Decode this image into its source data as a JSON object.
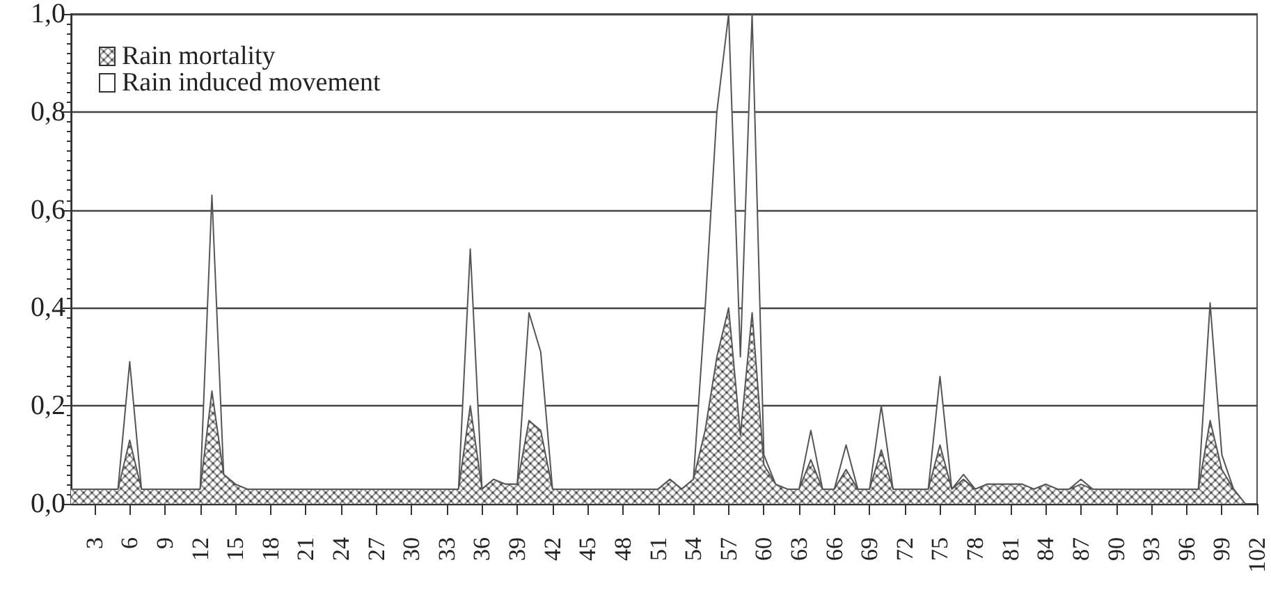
{
  "chart_data": {
    "type": "area",
    "categories": [
      null,
      null,
      "3",
      null,
      null,
      "6",
      null,
      null,
      "9",
      null,
      null,
      "12",
      null,
      null,
      "15",
      null,
      null,
      "18",
      null,
      null,
      "21",
      null,
      null,
      "24",
      null,
      null,
      "27",
      null,
      null,
      "30",
      null,
      null,
      "33",
      null,
      null,
      "36",
      null,
      null,
      "39",
      null,
      null,
      "42",
      null,
      null,
      "45",
      null,
      null,
      "48",
      null,
      null,
      "51",
      null,
      null,
      "54",
      null,
      null,
      "57",
      null,
      null,
      "60",
      null,
      null,
      "63",
      null,
      null,
      "66",
      null,
      null,
      "69",
      null,
      null,
      "72",
      null,
      null,
      "75",
      null,
      null,
      "78",
      null,
      null,
      "81",
      null,
      null,
      "84",
      null,
      null,
      "87",
      null,
      null,
      "90",
      null,
      null,
      "93",
      null,
      null,
      "96",
      null,
      null,
      "99",
      null,
      null,
      "102"
    ],
    "series": [
      {
        "name": "Rain mortality",
        "color": "#333333",
        "values": [
          0.03,
          0.03,
          0.03,
          0.03,
          0.03,
          0.13,
          0.03,
          0.03,
          0.03,
          0.03,
          0.03,
          0.03,
          0.23,
          0.06,
          0.04,
          0.03,
          0.03,
          0.03,
          0.03,
          0.03,
          0.03,
          0.03,
          0.03,
          0.03,
          0.03,
          0.03,
          0.03,
          0.03,
          0.03,
          0.03,
          0.03,
          0.03,
          0.03,
          0.03,
          0.2,
          0.03,
          0.05,
          0.04,
          0.04,
          0.17,
          0.15,
          0.03,
          0.03,
          0.03,
          0.03,
          0.03,
          0.03,
          0.03,
          0.03,
          0.03,
          0.03,
          0.05,
          0.03,
          0.05,
          0.15,
          0.3,
          0.4,
          0.14,
          0.39,
          0.08,
          0.04,
          0.03,
          0.03,
          0.09,
          0.03,
          0.03,
          0.07,
          0.03,
          0.03,
          0.11,
          0.03,
          0.03,
          0.03,
          0.03,
          0.12,
          0.03,
          0.05,
          0.03,
          0.04,
          0.04,
          0.04,
          0.04,
          0.03,
          0.04,
          0.03,
          0.03,
          0.04,
          0.03,
          0.03,
          0.03,
          0.03,
          0.03,
          0.03,
          0.03,
          0.03,
          0.03,
          0.03,
          0.17,
          0.07,
          0.03,
          0,
          null
        ]
      },
      {
        "name": "Rain induced movement",
        "color": "#ffffff",
        "values": [
          0.03,
          0.03,
          0.03,
          0.03,
          0.03,
          0.29,
          0.03,
          0.03,
          0.03,
          0.03,
          0.03,
          0.03,
          0.63,
          0.06,
          0.04,
          0.03,
          0.03,
          0.03,
          0.03,
          0.03,
          0.03,
          0.03,
          0.03,
          0.03,
          0.03,
          0.03,
          0.03,
          0.03,
          0.03,
          0.03,
          0.03,
          0.03,
          0.03,
          0.03,
          0.52,
          0.03,
          0.05,
          0.04,
          0.04,
          0.39,
          0.31,
          0.03,
          0.03,
          0.03,
          0.03,
          0.03,
          0.03,
          0.03,
          0.03,
          0.03,
          0.03,
          0.05,
          0.03,
          0.05,
          0.4,
          0.8,
          1.0,
          0.3,
          1.0,
          0.1,
          0.04,
          0.03,
          0.03,
          0.15,
          0.03,
          0.03,
          0.12,
          0.03,
          0.03,
          0.2,
          0.03,
          0.03,
          0.03,
          0.03,
          0.26,
          0.03,
          0.06,
          0.03,
          0.04,
          0.04,
          0.04,
          0.04,
          0.03,
          0.04,
          0.03,
          0.03,
          0.05,
          0.03,
          0.03,
          0.03,
          0.03,
          0.03,
          0.03,
          0.03,
          0.03,
          0.03,
          0.03,
          0.41,
          0.1,
          0.03,
          0,
          null
        ]
      }
    ],
    "ylim": [
      0,
      1
    ],
    "yticks": [
      {
        "value": 0,
        "label": "0,0"
      },
      {
        "value": 0.2,
        "label": "0,2"
      },
      {
        "value": 0.4,
        "label": "0,4"
      },
      {
        "value": 0.6,
        "label": "0,6"
      },
      {
        "value": 0.8,
        "label": "0,8"
      },
      {
        "value": 1,
        "label": "1,0"
      }
    ],
    "grid": "y",
    "legend": "top left"
  }
}
